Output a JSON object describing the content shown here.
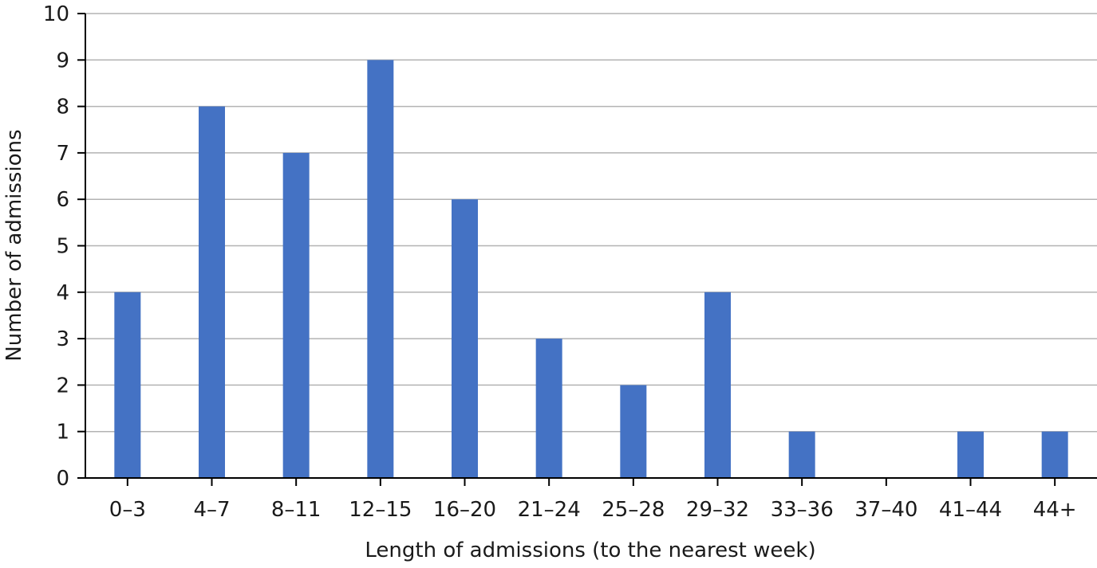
{
  "chart_data": {
    "type": "bar",
    "title": "",
    "xlabel": "Length of admissions (to the nearest week)",
    "ylabel": "Number of admissions",
    "categories": [
      "0–3",
      "4–7",
      "8–11",
      "12–15",
      "16–20",
      "21–24",
      "25–28",
      "29–32",
      "33–36",
      "37–40",
      "41–44",
      "44+"
    ],
    "values": [
      4,
      8,
      7,
      9,
      6,
      3,
      2,
      4,
      1,
      0,
      1,
      1
    ],
    "ylim": [
      0,
      10
    ],
    "yticks": [
      0,
      1,
      2,
      3,
      4,
      5,
      6,
      7,
      8,
      9,
      10
    ],
    "grid": true,
    "legend": "none",
    "colors": {
      "bar": "#4472c4",
      "grid": "#b3b3b3",
      "axis": "#000000"
    }
  }
}
